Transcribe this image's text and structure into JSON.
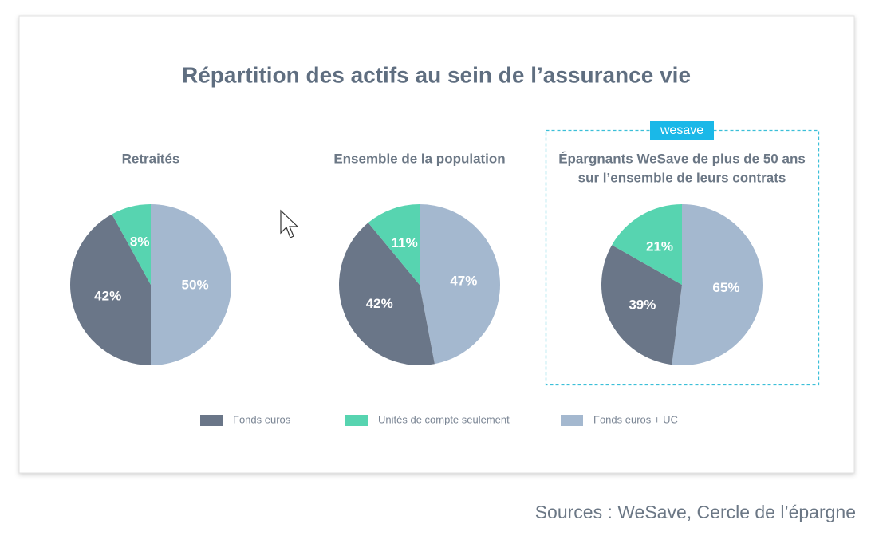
{
  "title": "Répartition des actifs au sein de l’assurance vie",
  "badge": "wesave",
  "source": "Sources : WeSave, Cercle de l’épargne",
  "chart_data": [
    {
      "type": "pie",
      "title": "Retraités",
      "categories": [
        "Fonds euros",
        "Unités de compte seulement",
        "Fonds euros + UC"
      ],
      "values": [
        42,
        8,
        50
      ],
      "value_labels": [
        "42%",
        "8%",
        "50%"
      ],
      "colors": [
        "#6a7688",
        "#57d4b0",
        "#a4b8cf"
      ]
    },
    {
      "type": "pie",
      "title": "Ensemble de la population",
      "categories": [
        "Fonds euros",
        "Unités de compte seulement",
        "Fonds euros + UC"
      ],
      "values": [
        42,
        11,
        47
      ],
      "value_labels": [
        "42%",
        "11%",
        "47%"
      ],
      "colors": [
        "#6a7688",
        "#57d4b0",
        "#a4b8cf"
      ]
    },
    {
      "type": "pie",
      "title": [
        "Épargnants WeSave de plus de 50 ans",
        "sur l’ensemble de leurs contrats"
      ],
      "categories": [
        "Fonds euros",
        "Unités de compte seulement",
        "Fonds euros + UC"
      ],
      "values": [
        39,
        21,
        65
      ],
      "value_labels": [
        "39%",
        "21%",
        "65%"
      ],
      "colors": [
        "#6a7688",
        "#57d4b0",
        "#a4b8cf"
      ]
    }
  ]
}
